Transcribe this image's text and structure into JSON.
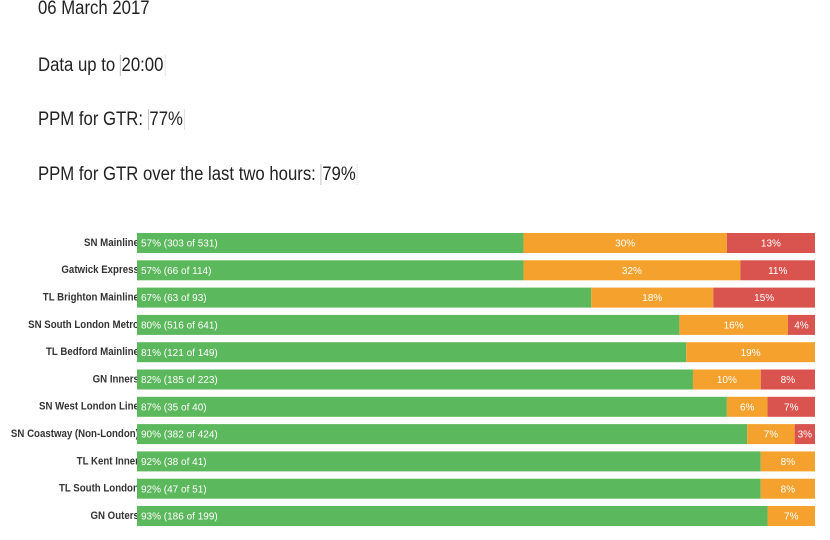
{
  "header": {
    "date": "06 March 2017",
    "data_up_to": {
      "label": "Data up to",
      "value": "20:00"
    },
    "ppm": {
      "label": "PPM for GTR:",
      "value": "77%"
    },
    "ppm_two_hours": {
      "label": "PPM for GTR over the last two hours:",
      "value": "79%"
    }
  },
  "chart_data": {
    "type": "stacked-barh",
    "categories": [
      "SN Mainline",
      "Gatwick Express",
      "TL Brighton Mainline",
      "SN South London Metro",
      "TL Bedford Mainline",
      "GN Inners",
      "SN West London Line",
      "SN Coastway (Non-London)",
      "TL Kent Inner",
      "TL South London",
      "GN Outers"
    ],
    "xlim": [
      0,
      100
    ],
    "series": [
      {
        "color": "#5cb85c",
        "values": [
          57,
          57,
          67,
          80,
          81,
          82,
          87,
          90,
          92,
          92,
          93
        ],
        "value_labels": [
          "57% (303 of 531)",
          "57% (66 of 114)",
          "67% (63 of 93)",
          "80% (516 of 641)",
          "81% (121 of 149)",
          "82% (185 of 223)",
          "87% (35 of 40)",
          "90% (382 of 424)",
          "92% (38 of 41)",
          "92% (47 of 51)",
          "93% (186 of 199)"
        ]
      },
      {
        "color": "#f4a22d",
        "values": [
          30,
          32,
          18,
          16,
          19,
          10,
          6,
          7,
          8,
          8,
          7
        ],
        "value_labels": [
          "30%",
          "32%",
          "18%",
          "16%",
          "19%",
          "10%",
          "6%",
          "7%",
          "8%",
          "8%",
          "7%"
        ]
      },
      {
        "color": "#d9534f",
        "values": [
          13,
          11,
          15,
          4,
          null,
          8,
          7,
          3,
          null,
          null,
          null
        ],
        "value_labels": [
          "13%",
          "11%",
          "15%",
          "4%",
          null,
          "8%",
          "7%",
          "3%",
          null,
          null,
          null
        ]
      }
    ]
  }
}
